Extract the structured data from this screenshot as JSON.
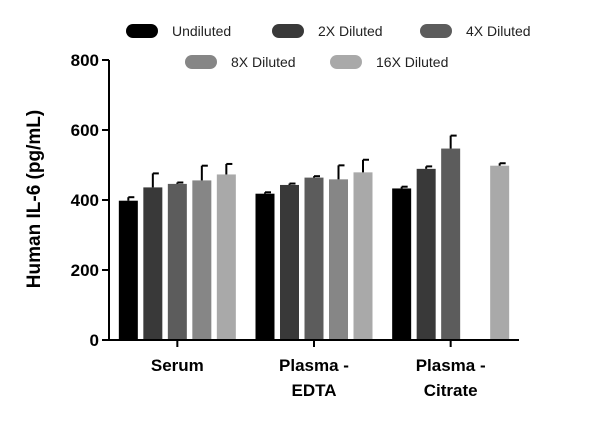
{
  "chart_data": {
    "type": "bar",
    "title": "",
    "xlabel": "",
    "ylabel": "Human IL-6 (pg/mL)",
    "ylim": [
      0,
      800
    ],
    "yticks": [
      "0",
      "200",
      "400",
      "600",
      "800"
    ],
    "grid": false,
    "legend_position": "top",
    "categories": [
      {
        "line1": "Serum",
        "line2": ""
      },
      {
        "line1": "Plasma -",
        "line2": "EDTA"
      },
      {
        "line1": "Plasma -",
        "line2": "Citrate"
      }
    ],
    "series": [
      {
        "name": "Undiluted",
        "color": "#000000",
        "values": [
          398,
          418,
          433
        ],
        "errors": [
          10,
          4,
          5
        ]
      },
      {
        "name": "2X Diluted",
        "color": "#393939",
        "values": [
          436,
          443,
          489
        ],
        "errors": [
          40,
          4,
          7
        ]
      },
      {
        "name": "4X Diluted",
        "color": "#5c5c5c",
        "values": [
          446,
          464,
          547
        ],
        "errors": [
          4,
          4,
          37
        ]
      },
      {
        "name": "8X Diluted",
        "color": "#868686",
        "values": [
          456,
          459,
          0
        ],
        "errors": [
          42,
          40,
          0
        ]
      },
      {
        "name": "16X Diluted",
        "color": "#a9a9a9",
        "values": [
          473,
          479,
          498
        ],
        "errors": [
          30,
          36,
          7
        ]
      }
    ]
  }
}
